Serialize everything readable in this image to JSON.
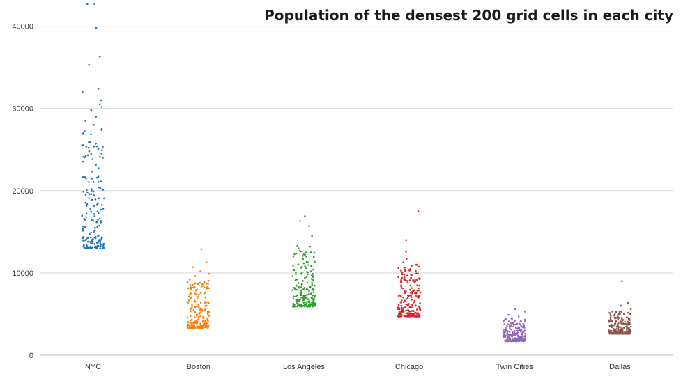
{
  "chart_data": {
    "type": "scatter",
    "title": "Population of the densest 200 grid cells in each city",
    "xlabel": "",
    "ylabel": "",
    "categories": [
      "NYC",
      "Boston",
      "Los Angeles",
      "Chicago",
      "Twin Cities",
      "Dallas"
    ],
    "ylim": [
      0,
      42000
    ],
    "yticks": [
      0,
      10000,
      20000,
      30000,
      40000
    ],
    "grid": true,
    "jitter": true,
    "points_per_category": 200,
    "series": [
      {
        "category": "NYC",
        "color": "#1f77b4",
        "min": 13000,
        "max": 42700,
        "outliers": [
          42700,
          42700,
          39800,
          36300,
          35300,
          32400,
          32000,
          31000,
          30500,
          30200,
          29800,
          29000,
          28500,
          28000,
          27500
        ]
      },
      {
        "category": "Boston",
        "color": "#ff7f0e",
        "min": 3300,
        "max": 12900,
        "outliers": [
          12900,
          11300,
          10700,
          10200,
          9900,
          9600,
          9200
        ]
      },
      {
        "category": "Los Angeles",
        "color": "#2ca02c",
        "min": 5900,
        "max": 16900,
        "outliers": [
          16900,
          16300,
          15700,
          14500,
          13300,
          13200,
          13000,
          12700
        ]
      },
      {
        "category": "Chicago",
        "color": "#d62728",
        "min": 4700,
        "max": 17500,
        "outliers": [
          17500,
          14000,
          12600,
          11700,
          11300,
          11000
        ]
      },
      {
        "category": "Twin Cities",
        "color": "#9467bd",
        "min": 1700,
        "max": 5600,
        "outliers": [
          5600,
          5300,
          4900,
          4700,
          4500
        ]
      },
      {
        "category": "Dallas",
        "color": "#8c564b",
        "min": 2600,
        "max": 9000,
        "outliers": [
          9000,
          6400,
          6300,
          6000,
          5600,
          5300
        ]
      }
    ]
  }
}
